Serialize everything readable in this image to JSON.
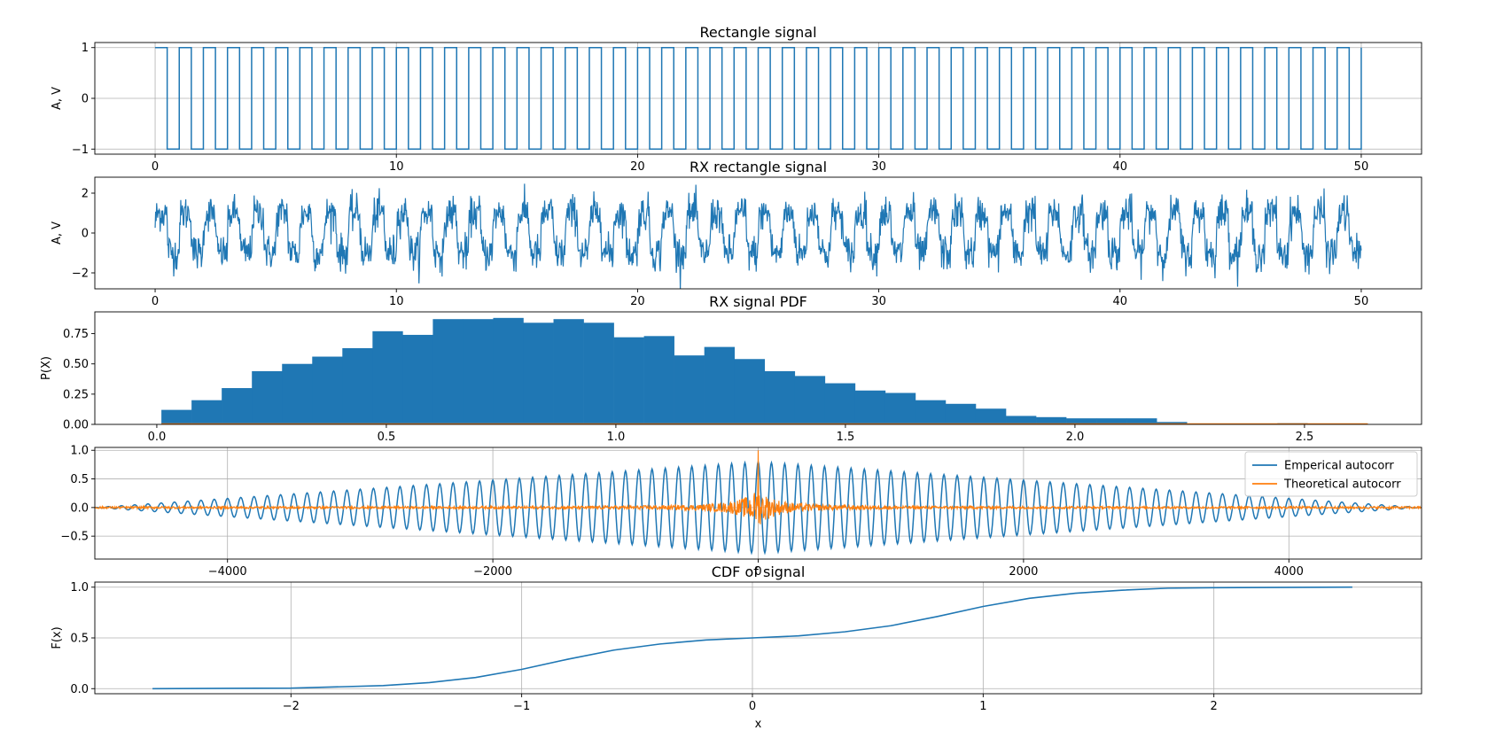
{
  "colors": {
    "blue": "#1f77b4",
    "orange": "#ff7f0e",
    "grid": "#b0b0b0"
  },
  "chart_data": [
    {
      "type": "line",
      "title": "Rectangle signal",
      "xlabel": "",
      "ylabel": "A, V",
      "xlim": [
        -2.5,
        52.5
      ],
      "ylim": [
        -1.1,
        1.1
      ],
      "xticks": [
        0,
        10,
        20,
        30,
        40,
        50
      ],
      "xticklabels": [
        "0",
        "10",
        "20",
        "30",
        "40",
        "50"
      ],
      "yticks": [
        -1,
        0,
        1
      ],
      "yticklabels": [
        "−1",
        "0",
        "1"
      ],
      "grid": true,
      "series": [
        {
          "signal": "square",
          "levels": [
            -1,
            1
          ],
          "period": 1.0,
          "duty": 0.5,
          "x_range": [
            0,
            50
          ]
        }
      ]
    },
    {
      "type": "line",
      "title": "RX rectangle signal",
      "xlabel": "",
      "ylabel": "A, V",
      "xlim": [
        -2.5,
        52.5
      ],
      "ylim": [
        -2.8,
        2.8
      ],
      "xticks": [
        0,
        10,
        20,
        30,
        40,
        50
      ],
      "xticklabels": [
        "0",
        "10",
        "20",
        "30",
        "40",
        "50"
      ],
      "yticks": [
        -2,
        0,
        2
      ],
      "yticklabels": [
        "−2",
        "0",
        "2"
      ],
      "grid": false,
      "series": [
        {
          "signal": "square plus noise",
          "levels": [
            -1,
            1
          ],
          "period": 1.0,
          "noise_std": 0.45,
          "x_range": [
            0,
            50
          ]
        }
      ]
    },
    {
      "type": "bar",
      "title": "RX signal PDF",
      "xlabel": "",
      "ylabel": "P(X)",
      "xlim": [
        -0.135,
        2.755
      ],
      "ylim": [
        0,
        0.93
      ],
      "xticks": [
        0,
        0.5,
        1.0,
        1.5,
        2.0,
        2.5
      ],
      "xticklabels": [
        "0.0",
        "0.5",
        "1.0",
        "1.5",
        "2.0",
        "2.5"
      ],
      "yticks": [
        0,
        0.25,
        0.5,
        0.75
      ],
      "yticklabels": [
        "0.00",
        "0.25",
        "0.50",
        "0.75"
      ],
      "grid": false,
      "bin_edges": [
        0.01,
        0.0757,
        0.1414,
        0.2071,
        0.2728,
        0.3385,
        0.4042,
        0.4699,
        0.5356,
        0.6013,
        0.667,
        0.7327,
        0.7984,
        0.8641,
        0.9298,
        0.9955,
        1.0612,
        1.1269,
        1.1926,
        1.2583,
        1.324,
        1.3897,
        1.4554,
        1.5211,
        1.5868,
        1.6525,
        1.7182,
        1.7839,
        1.8496,
        1.9153,
        1.981,
        2.0467,
        2.1124,
        2.1781,
        2.2438,
        2.3095,
        2.3752,
        2.4409,
        2.5066,
        2.5723,
        2.638
      ],
      "values": [
        0.12,
        0.2,
        0.3,
        0.44,
        0.5,
        0.56,
        0.63,
        0.77,
        0.74,
        0.87,
        0.87,
        0.88,
        0.84,
        0.87,
        0.84,
        0.72,
        0.73,
        0.57,
        0.64,
        0.54,
        0.44,
        0.4,
        0.34,
        0.28,
        0.26,
        0.2,
        0.17,
        0.13,
        0.07,
        0.06,
        0.05,
        0.05,
        0.05,
        0.02,
        0.0,
        0.005,
        0.005,
        0.01,
        0.005,
        0.0
      ],
      "series": [
        {
          "name": "",
          "type": "line",
          "signal": "near-zero line",
          "x_range": [
            0.01,
            2.638
          ],
          "y": 0.004
        }
      ]
    },
    {
      "type": "line",
      "title": "",
      "xlabel": "",
      "ylabel": "",
      "xlim": [
        -5000,
        5000
      ],
      "ylim": [
        -0.9,
        1.05
      ],
      "xticks": [
        -4000,
        -2000,
        0,
        2000,
        4000
      ],
      "xticklabels": [
        "−4000",
        "−2000",
        "0",
        "2000",
        "4000"
      ],
      "yticks": [
        -0.5,
        0,
        0.5,
        1.0
      ],
      "yticklabels": [
        "−0.5",
        "0.0",
        "0.5",
        "1.0"
      ],
      "grid": true,
      "legend": "top-right",
      "series": [
        {
          "name": "Emperical autocorr",
          "signal": "triangular-envelope oscillation",
          "period": 100,
          "peak": 0.8,
          "x_range": [
            -5000,
            5000
          ]
        },
        {
          "name": "Theoretical autocorr",
          "signal": "narrow spike",
          "peak": 1.0,
          "x_range": [
            -5000,
            5000
          ]
        }
      ]
    },
    {
      "type": "line",
      "title": "CDF of signal",
      "xlabel": "x",
      "ylabel": "F(x)",
      "xlim": [
        -2.85,
        2.9
      ],
      "ylim": [
        -0.05,
        1.05
      ],
      "xticks": [
        -2,
        -1,
        0,
        1,
        2
      ],
      "xticklabels": [
        "−2",
        "−1",
        "0",
        "1",
        "2"
      ],
      "yticks": [
        0,
        0.5,
        1.0
      ],
      "yticklabels": [
        "0.0",
        "0.5",
        "1.0"
      ],
      "grid": true,
      "series": [
        {
          "name": "",
          "x": [
            -2.6,
            -2.0,
            -1.6,
            -1.4,
            -1.2,
            -1.0,
            -0.8,
            -0.6,
            -0.4,
            -0.2,
            0.0,
            0.2,
            0.4,
            0.6,
            0.8,
            1.0,
            1.2,
            1.4,
            1.6,
            1.8,
            2.0,
            2.6
          ],
          "y": [
            0.0,
            0.005,
            0.03,
            0.06,
            0.11,
            0.19,
            0.29,
            0.38,
            0.44,
            0.48,
            0.5,
            0.52,
            0.56,
            0.62,
            0.71,
            0.81,
            0.89,
            0.94,
            0.97,
            0.99,
            0.995,
            1.0
          ]
        }
      ]
    }
  ]
}
